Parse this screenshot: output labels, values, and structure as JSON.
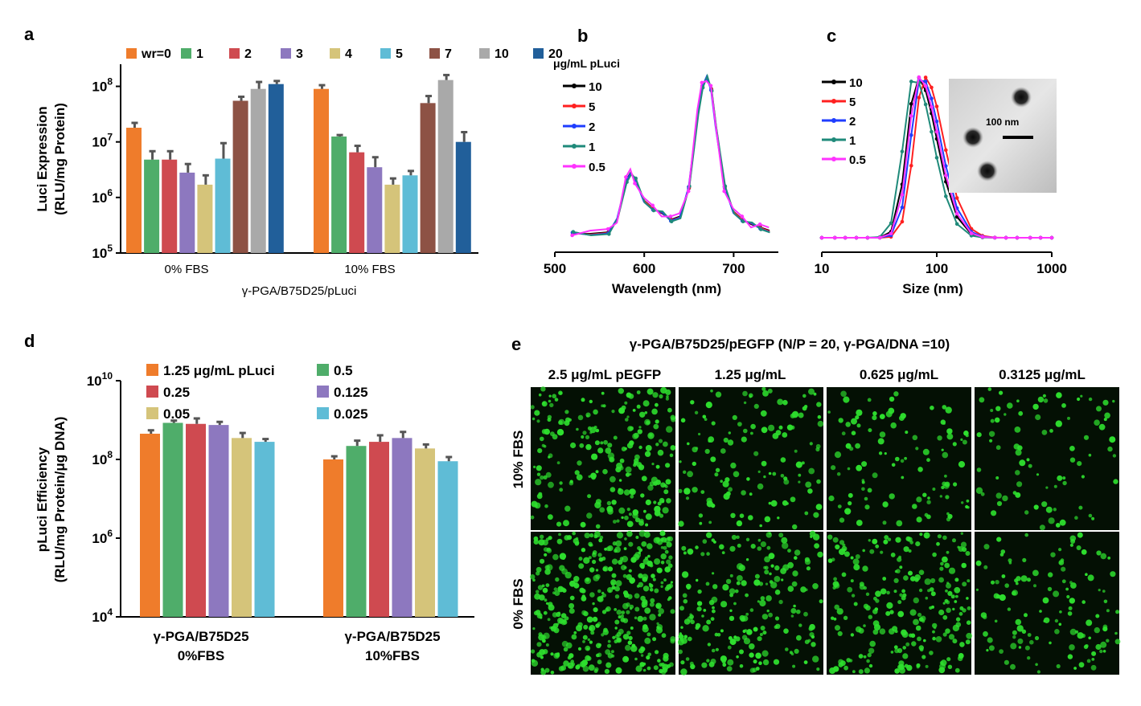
{
  "panel_letters": {
    "a": "a",
    "b": "b",
    "c": "c",
    "d": "d",
    "e": "e"
  },
  "colors": {
    "series": [
      "#ef7c2b",
      "#4fad6a",
      "#cf4a50",
      "#8d78bf",
      "#d5c47a",
      "#5fbcd6",
      "#8d5245",
      "#a9a9a9",
      "#215f9a"
    ],
    "spectra": [
      "#000000",
      "#ff2020",
      "#1f3dff",
      "#1f8a7a",
      "#ff33ff"
    ],
    "error_bar": "#555555",
    "fluorescence": "#2ee02e",
    "cell_background": "#041004"
  },
  "chart_data": [
    {
      "panel": "a",
      "type": "bar",
      "log_scale": true,
      "ylim": [
        100000,
        250000000
      ],
      "yticks": [
        {
          "value": 100000,
          "base": "10",
          "exp": "5"
        },
        {
          "value": 1000000,
          "base": "10",
          "exp": "6"
        },
        {
          "value": 10000000,
          "base": "10",
          "exp": "7"
        },
        {
          "value": 100000000,
          "base": "10",
          "exp": "8"
        }
      ],
      "ylabel_lines": [
        "Luci Expression",
        "(RLU/mg Protein)"
      ],
      "xlabel": "γ-PGA/B75D25/pLuci",
      "categories": [
        "0% FBS",
        "10% FBS"
      ],
      "series": [
        {
          "name": "wr=0",
          "values": [
            18000000,
            90000000
          ],
          "errors": [
            4000000,
            15000000
          ]
        },
        {
          "name": "1",
          "values": [
            4800000,
            12500000
          ],
          "errors": [
            2000000,
            800000
          ]
        },
        {
          "name": "2",
          "values": [
            4800000,
            6500000
          ],
          "errors": [
            2000000,
            2000000
          ]
        },
        {
          "name": "3",
          "values": [
            2800000,
            3500000
          ],
          "errors": [
            1200000,
            1800000
          ]
        },
        {
          "name": "4",
          "values": [
            1700000,
            1700000
          ],
          "errors": [
            800000,
            500000
          ]
        },
        {
          "name": "5",
          "values": [
            5000000,
            2500000
          ],
          "errors": [
            4500000,
            500000
          ]
        },
        {
          "name": "7",
          "values": [
            55000000,
            50000000
          ],
          "errors": [
            10000000,
            17000000
          ]
        },
        {
          "name": "10",
          "values": [
            90000000,
            130000000
          ],
          "errors": [
            30000000,
            30000000
          ]
        },
        {
          "name": "20",
          "values": [
            110000000,
            10000000
          ],
          "errors": [
            15000000,
            5000000
          ]
        }
      ],
      "legend_placement": "top"
    },
    {
      "panel": "b",
      "type": "line",
      "xlabel": "Wavelength (nm)",
      "xlim": [
        500,
        750
      ],
      "xticks": [
        "500",
        "600",
        "700"
      ],
      "legend_title": "μg/mL pLuci",
      "series_names": [
        "10",
        "5",
        "2",
        "1",
        "0.5"
      ],
      "y_relative": true,
      "x": [
        520,
        540,
        560,
        570,
        580,
        585,
        590,
        600,
        610,
        620,
        630,
        640,
        650,
        660,
        665,
        670,
        675,
        680,
        690,
        700,
        710,
        720,
        730,
        740
      ],
      "y": [
        0.01,
        0.01,
        0.02,
        0.1,
        0.35,
        0.4,
        0.35,
        0.22,
        0.17,
        0.14,
        0.1,
        0.12,
        0.3,
        0.78,
        0.95,
        1.0,
        0.93,
        0.7,
        0.3,
        0.15,
        0.1,
        0.07,
        0.05,
        0.03
      ],
      "legend_placement": "top-left"
    },
    {
      "panel": "c",
      "type": "line",
      "xlabel": "Size (nm)",
      "log_scale_x": true,
      "xlim": [
        10,
        1000
      ],
      "xticks": [
        "10",
        "100",
        "1000"
      ],
      "series_names": [
        "10",
        "5",
        "2",
        "1",
        "0.5"
      ],
      "y_relative": true,
      "x": [
        10,
        13,
        16,
        20,
        25,
        32,
        40,
        50,
        60,
        70,
        80,
        90,
        100,
        120,
        150,
        200,
        250,
        320,
        400,
        500,
        650,
        800,
        1000
      ],
      "peak_sizes": [
        68,
        78,
        73,
        63,
        70
      ],
      "inset_scale_label": "100 nm",
      "legend_placement": "top-left"
    },
    {
      "panel": "d",
      "type": "bar",
      "log_scale": true,
      "ylim": [
        10000,
        10000000000
      ],
      "yticks": [
        {
          "value": 10000,
          "base": "10",
          "exp": "4"
        },
        {
          "value": 1000000,
          "base": "10",
          "exp": "6"
        },
        {
          "value": 100000000,
          "base": "10",
          "exp": "8"
        },
        {
          "value": 10000000000,
          "base": "10",
          "exp": "10"
        }
      ],
      "ylabel_lines": [
        "pLuci Efficiency",
        "(RLU/mg Protein/μg DNA)"
      ],
      "categories": [
        [
          "γ-PGA/B75D25",
          "0%FBS"
        ],
        [
          "γ-PGA/B75D25",
          "10%FBS"
        ]
      ],
      "series": [
        {
          "name": "1.25 μg/mL pLuci",
          "values": [
            450000000,
            100000000
          ],
          "errors": [
            100000000,
            20000000
          ]
        },
        {
          "name": "0.5",
          "values": [
            850000000,
            220000000
          ],
          "errors": [
            120000000,
            80000000
          ]
        },
        {
          "name": "0.25",
          "values": [
            800000000,
            280000000
          ],
          "errors": [
            300000000,
            130000000
          ]
        },
        {
          "name": "0.125",
          "values": [
            750000000,
            350000000
          ],
          "errors": [
            150000000,
            150000000
          ]
        },
        {
          "name": "0.05",
          "values": [
            350000000,
            190000000
          ],
          "errors": [
            120000000,
            50000000
          ]
        },
        {
          "name": "0.025",
          "values": [
            280000000,
            90000000
          ],
          "errors": [
            50000000,
            25000000
          ]
        }
      ],
      "legend_placement": "top"
    }
  ],
  "panel_e": {
    "title": "γ-PGA/B75D25/pEGFP  (N/P = 20, γ-PGA/DNA =10)",
    "columns": [
      "2.5 μg/mL pEGFP",
      "1.25 μg/mL",
      "0.625 μg/mL",
      "0.3125 μg/mL"
    ],
    "rows": [
      "10% FBS",
      "0% FBS"
    ],
    "density": [
      [
        0.55,
        0.3,
        0.25,
        0.2
      ],
      [
        0.95,
        0.5,
        0.55,
        0.3
      ]
    ]
  }
}
